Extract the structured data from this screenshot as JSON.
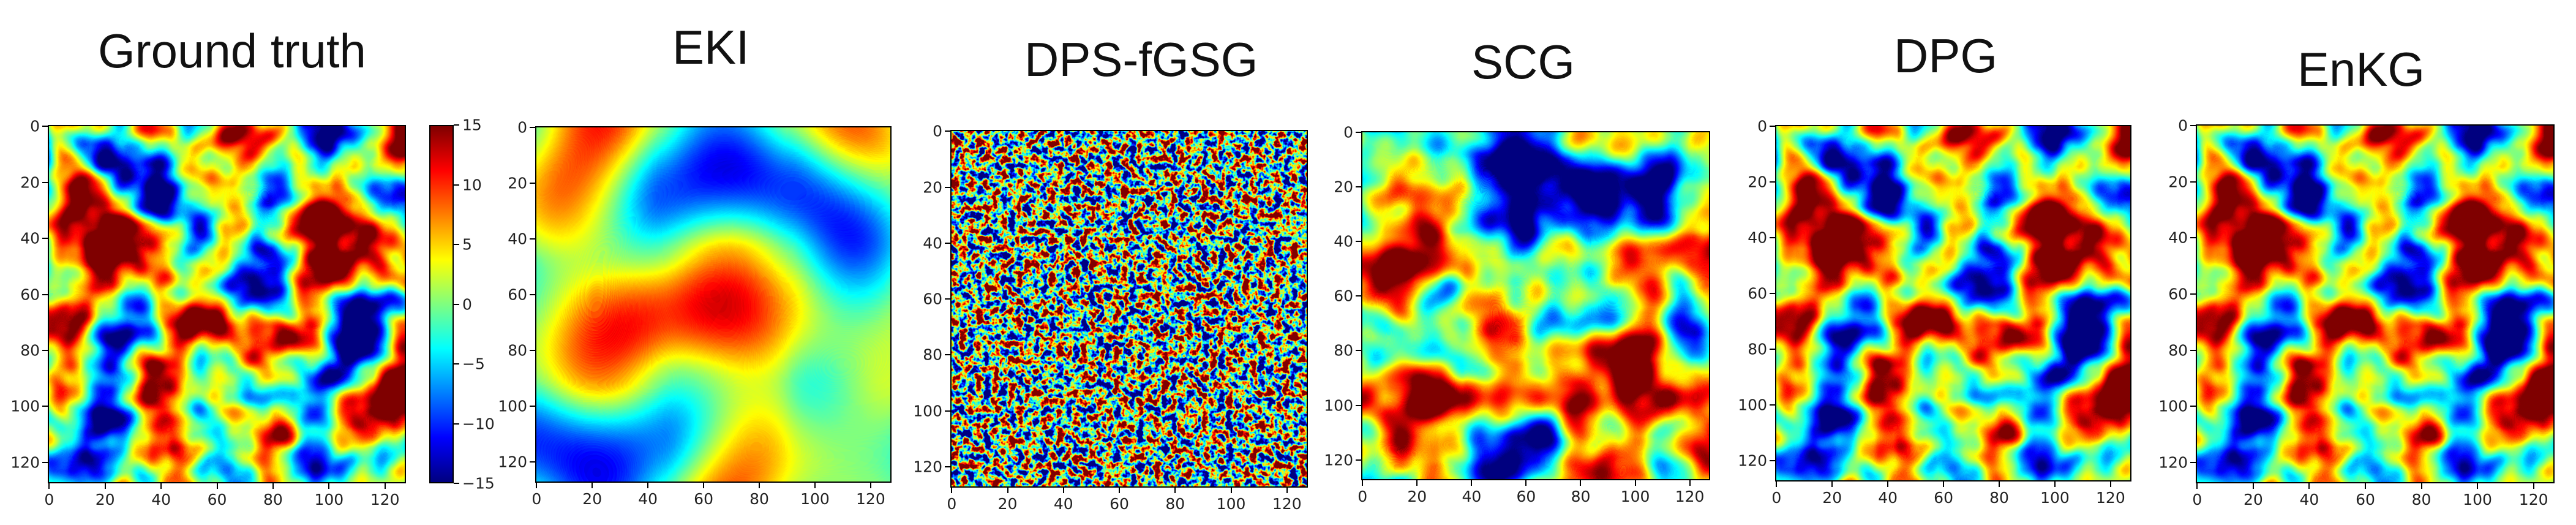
{
  "panels": [
    {
      "id": "gt",
      "title": "Ground truth",
      "texture": "smooth-vortices"
    },
    {
      "id": "eki",
      "title": "EKI",
      "texture": "blurred"
    },
    {
      "id": "dps",
      "title": "DPS-fGSG",
      "texture": "noise"
    },
    {
      "id": "scg",
      "title": "SCG",
      "texture": "smooth-vortices-alt"
    },
    {
      "id": "dpg",
      "title": "DPG",
      "texture": "smooth-vortices"
    },
    {
      "id": "enkg",
      "title": "EnKG",
      "texture": "smooth-vortices"
    }
  ],
  "axis_ticks": [
    "0",
    "20",
    "40",
    "60",
    "80",
    "100",
    "120"
  ],
  "colorbar": {
    "ticks": [
      "15",
      "10",
      "5",
      "0",
      "−5",
      "−10",
      "−15"
    ],
    "colormap": [
      "#00007f",
      "#0000ff",
      "#007fff",
      "#00ffff",
      "#7fff7f",
      "#ffff00",
      "#ff7f00",
      "#ff0000",
      "#7f0000"
    ]
  }
}
